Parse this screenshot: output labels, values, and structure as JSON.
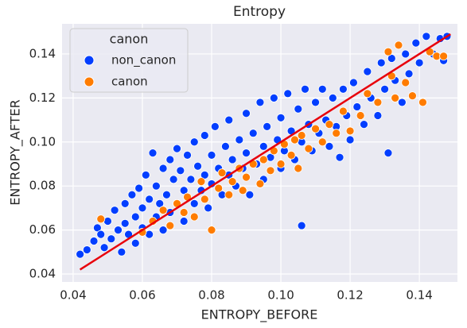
{
  "chart_data": {
    "type": "scatter",
    "title": "Entropy",
    "x_label": "ENTROPY_BEFORE",
    "y_label": "ENTROPY_AFTER",
    "legend_title": "canon",
    "legend": "upper left",
    "grid": true,
    "xlim": [
      0.0368,
      0.151
    ],
    "ylim": [
      0.0364,
      0.1537
    ],
    "xticks": [
      0.04,
      0.06,
      0.08,
      {
        "value": 0.1,
        "label": "0.10"
      },
      0.12,
      0.14
    ],
    "yticks": [
      0.04,
      0.06,
      0.08,
      {
        "value": 0.1,
        "label": "0.10"
      },
      0.12,
      0.14
    ],
    "series": [
      {
        "name": "non_canon",
        "color": "#023eff",
        "x": [
          0.042,
          0.044,
          0.046,
          0.047,
          0.048,
          0.049,
          0.05,
          0.051,
          0.052,
          0.053,
          0.054,
          0.055,
          0.055,
          0.056,
          0.057,
          0.058,
          0.058,
          0.059,
          0.06,
          0.06,
          0.061,
          0.062,
          0.062,
          0.063,
          0.064,
          0.064,
          0.065,
          0.066,
          0.066,
          0.067,
          0.068,
          0.068,
          0.069,
          0.07,
          0.07,
          0.071,
          0.072,
          0.072,
          0.073,
          0.074,
          0.075,
          0.075,
          0.076,
          0.077,
          0.078,
          0.078,
          0.079,
          0.08,
          0.08,
          0.081,
          0.082,
          0.083,
          0.084,
          0.085,
          0.085,
          0.086,
          0.087,
          0.088,
          0.089,
          0.09,
          0.09,
          0.091,
          0.092,
          0.093,
          0.094,
          0.095,
          0.095,
          0.096,
          0.097,
          0.098,
          0.099,
          0.1,
          0.1,
          0.101,
          0.102,
          0.103,
          0.104,
          0.105,
          0.106,
          0.106,
          0.107,
          0.108,
          0.109,
          0.11,
          0.111,
          0.112,
          0.113,
          0.114,
          0.115,
          0.116,
          0.117,
          0.118,
          0.119,
          0.12,
          0.121,
          0.122,
          0.124,
          0.125,
          0.126,
          0.128,
          0.129,
          0.13,
          0.131,
          0.132,
          0.133,
          0.135,
          0.136,
          0.137,
          0.139,
          0.14,
          0.142,
          0.144,
          0.146,
          0.148,
          0.147
        ],
        "values": [
          0.049,
          0.051,
          0.055,
          0.061,
          0.058,
          0.052,
          0.064,
          0.056,
          0.069,
          0.06,
          0.05,
          0.072,
          0.063,
          0.058,
          0.076,
          0.066,
          0.054,
          0.079,
          0.07,
          0.061,
          0.085,
          0.074,
          0.058,
          0.095,
          0.08,
          0.066,
          0.072,
          0.088,
          0.06,
          0.076,
          0.092,
          0.068,
          0.083,
          0.097,
          0.072,
          0.087,
          0.078,
          0.064,
          0.094,
          0.083,
          0.1,
          0.072,
          0.089,
          0.078,
          0.103,
          0.085,
          0.07,
          0.094,
          0.081,
          0.107,
          0.088,
          0.076,
          0.098,
          0.085,
          0.11,
          0.092,
          0.08,
          0.101,
          0.088,
          0.113,
          0.095,
          0.076,
          0.104,
          0.09,
          0.118,
          0.098,
          0.083,
          0.107,
          0.093,
          0.12,
          0.101,
          0.088,
          0.111,
          0.096,
          0.122,
          0.105,
          0.092,
          0.115,
          0.1,
          0.062,
          0.124,
          0.108,
          0.096,
          0.118,
          0.104,
          0.124,
          0.11,
          0.098,
          0.12,
          0.107,
          0.093,
          0.124,
          0.112,
          0.101,
          0.127,
          0.116,
          0.108,
          0.132,
          0.12,
          0.112,
          0.136,
          0.124,
          0.095,
          0.138,
          0.128,
          0.118,
          0.14,
          0.131,
          0.145,
          0.136,
          0.148,
          0.14,
          0.147,
          0.148,
          0.137
        ]
      },
      {
        "name": "canon",
        "color": "#ff7c00",
        "x": [
          0.048,
          0.06,
          0.063,
          0.066,
          0.068,
          0.07,
          0.072,
          0.073,
          0.075,
          0.077,
          0.078,
          0.08,
          0.082,
          0.083,
          0.085,
          0.086,
          0.088,
          0.089,
          0.09,
          0.092,
          0.094,
          0.095,
          0.097,
          0.098,
          0.1,
          0.101,
          0.103,
          0.104,
          0.105,
          0.106,
          0.108,
          0.11,
          0.112,
          0.114,
          0.116,
          0.118,
          0.12,
          0.123,
          0.125,
          0.128,
          0.131,
          0.132,
          0.133,
          0.134,
          0.136,
          0.138,
          0.141,
          0.143,
          0.145,
          0.147
        ],
        "values": [
          0.065,
          0.059,
          0.064,
          0.069,
          0.062,
          0.072,
          0.068,
          0.075,
          0.066,
          0.082,
          0.074,
          0.06,
          0.079,
          0.086,
          0.076,
          0.082,
          0.088,
          0.078,
          0.084,
          0.09,
          0.081,
          0.092,
          0.087,
          0.096,
          0.09,
          0.099,
          0.094,
          0.101,
          0.088,
          0.103,
          0.097,
          0.106,
          0.1,
          0.108,
          0.104,
          0.114,
          0.105,
          0.112,
          0.122,
          0.118,
          0.141,
          0.13,
          0.12,
          0.144,
          0.127,
          0.121,
          0.118,
          0.141,
          0.139,
          0.139
        ]
      }
    ],
    "line": {
      "color": "#e8000b",
      "x": [
        0.042,
        0.149
      ],
      "values": [
        0.042,
        0.149
      ]
    }
  }
}
